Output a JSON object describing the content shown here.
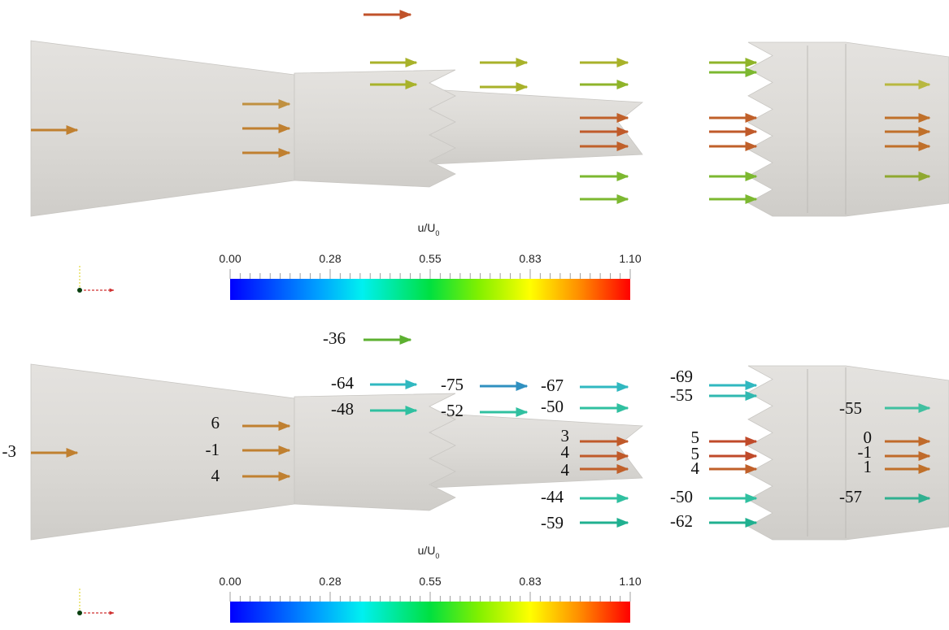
{
  "panels": [
    {
      "colorbar": {
        "title": "u/U",
        "title_sub": "0",
        "ticks": [
          "0.00",
          "0.28",
          "0.55",
          "0.83",
          "1.10"
        ]
      }
    },
    {
      "colorbar": {
        "title": "u/U",
        "title_sub": "0",
        "ticks": [
          "0.00",
          "0.28",
          "0.55",
          "0.83",
          "1.10"
        ]
      },
      "labels": [
        -36,
        -64,
        -48,
        -75,
        -52,
        -67,
        -50,
        3,
        4,
        4,
        -44,
        -59,
        -69,
        -55,
        5,
        5,
        4,
        -50,
        -62,
        -55,
        0,
        -1,
        1,
        -57,
        -3,
        6,
        -1,
        4
      ]
    }
  ]
}
